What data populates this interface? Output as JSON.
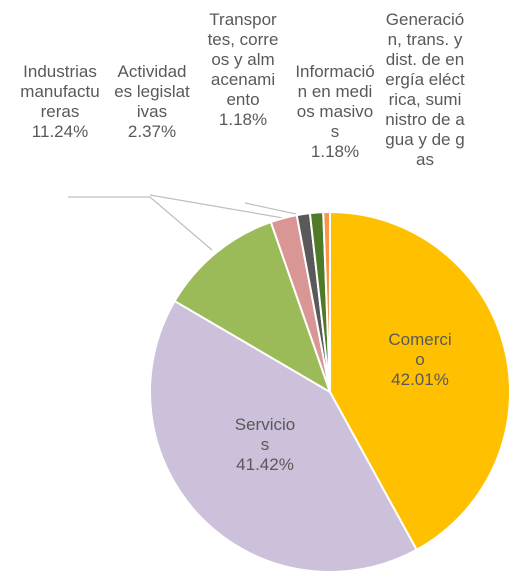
{
  "chart_data": {
    "type": "pie",
    "categories": [
      "Comercio",
      "Servicios",
      "Industrias manufactureras",
      "Actividades legislativas",
      "Transportes, correos y almacenamiento",
      "Información en medios masivos",
      "Generación, trans. y dist. de energía eléctrica, suministro de agua y de gas"
    ],
    "values": [
      42.01,
      41.42,
      11.24,
      2.37,
      1.18,
      1.18,
      0.6
    ],
    "value_labels": [
      "42.01%",
      "41.42%",
      "11.24%",
      "2.37%",
      "1.18%",
      "1.18%",
      null
    ],
    "colors": [
      "#FFC000",
      "#CCC0DA",
      "#9BBB59",
      "#DA9694",
      "#595959",
      "#4F7A28",
      "#F79646"
    ]
  }
}
